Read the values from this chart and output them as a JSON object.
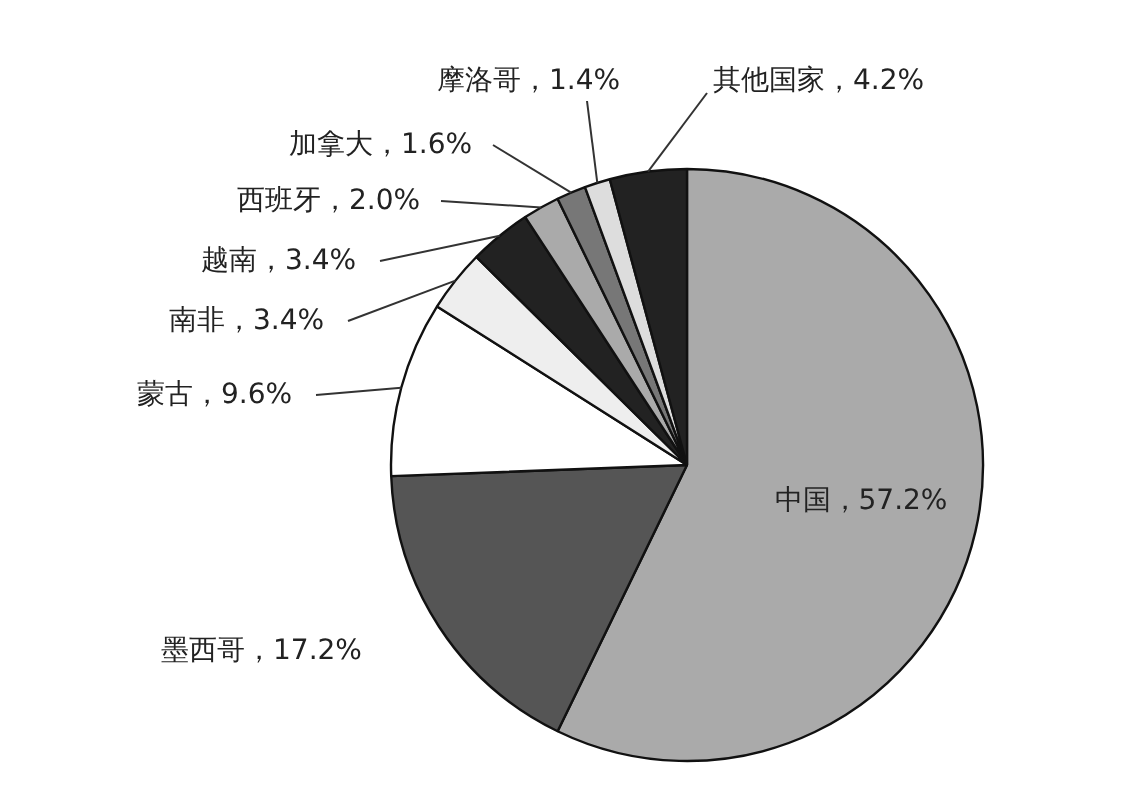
{
  "chart_data": {
    "type": "pie",
    "categories": [
      "中国",
      "墨西哥",
      "蒙古",
      "南非",
      "越南",
      "西班牙",
      "加拿大",
      "摩洛哥",
      "其他国家"
    ],
    "values": [
      57.2,
      17.2,
      9.6,
      3.4,
      3.4,
      2.0,
      1.6,
      1.4,
      4.2
    ],
    "colors": [
      "#aaaaaa",
      "#555555",
      "#ffffff",
      "#eeeeee",
      "#222222",
      "#aaaaaa",
      "#777777",
      "#dddddd",
      "#222222"
    ],
    "value_labels": [
      "57.2%",
      "17.2%",
      "9.6%",
      "3.4%",
      "3.4%",
      "2.0%",
      "1.6%",
      "1.4%",
      "4.2%"
    ]
  }
}
